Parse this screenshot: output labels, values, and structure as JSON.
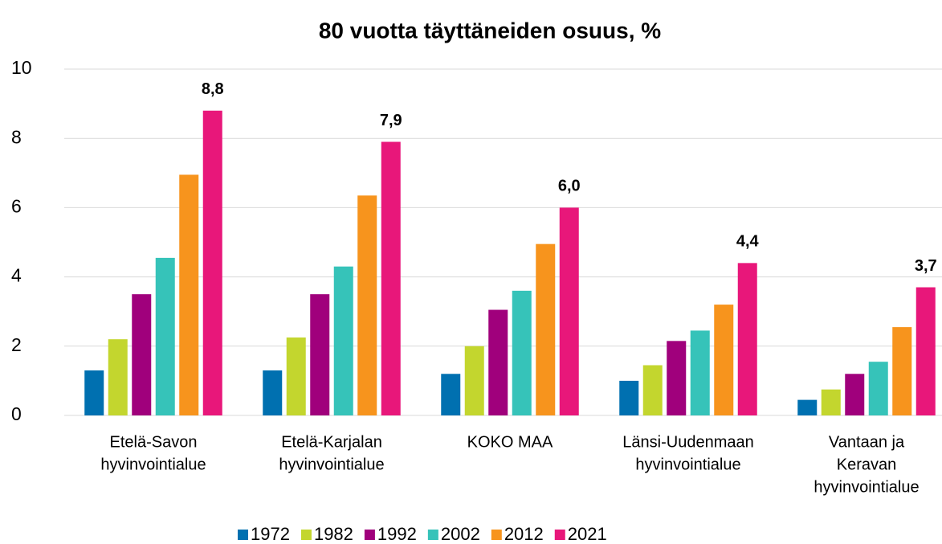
{
  "chart_data": {
    "type": "bar",
    "title": "80 vuotta täyttäneiden osuus, %",
    "categories": [
      [
        "Etelä-Savon",
        "hyvinvointialue"
      ],
      [
        "Etelä-Karjalan",
        "hyvinvointialue"
      ],
      [
        "KOKO MAA"
      ],
      [
        "Länsi-Uudenmaan",
        "hyvinvointialue"
      ],
      [
        "Vantaan ja",
        "Keravan",
        "hyvinvointialue"
      ]
    ],
    "series": [
      {
        "name": "1972",
        "color": "#0070b0",
        "values": [
          1.3,
          1.3,
          1.2,
          1.0,
          0.45
        ]
      },
      {
        "name": "1982",
        "color": "#c3d62e",
        "values": [
          2.2,
          2.25,
          2.0,
          1.45,
          0.75
        ]
      },
      {
        "name": "1992",
        "color": "#a0007c",
        "values": [
          3.5,
          3.5,
          3.05,
          2.15,
          1.2
        ]
      },
      {
        "name": "2002",
        "color": "#36c3b9",
        "values": [
          4.55,
          4.3,
          3.6,
          2.45,
          1.55
        ]
      },
      {
        "name": "2012",
        "color": "#f7941d",
        "values": [
          6.95,
          6.35,
          4.95,
          3.2,
          2.55
        ]
      },
      {
        "name": "2021",
        "color": "#e8177a",
        "values": [
          8.8,
          7.9,
          6.0,
          4.4,
          3.7
        ],
        "value_labels": [
          "8,8",
          "7,9",
          "6,0",
          "4,4",
          "3,7"
        ]
      }
    ],
    "ylim": [
      0,
      10
    ],
    "yticks": [
      0,
      2,
      4,
      6,
      8,
      10
    ],
    "grid": true,
    "legend": "bottom"
  }
}
